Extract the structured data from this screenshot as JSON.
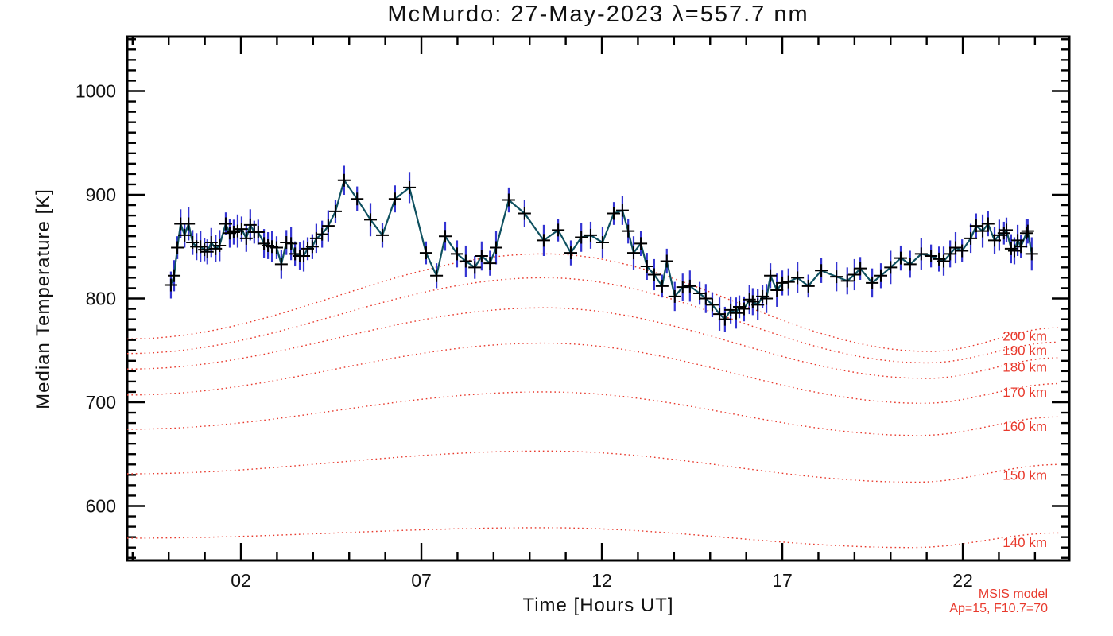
{
  "title": "McMurdo: 27-May-2023 λ=557.7 nm",
  "chart_data": {
    "type": "line",
    "title": "McMurdo: 27-May-2023 λ=557.7 nm",
    "xlabel": "Time [Hours UT]",
    "ylabel": "Median Temperature [K]",
    "xlim": [
      -1.15,
      24.95
    ],
    "ylim": [
      547.5,
      1052.5
    ],
    "grid": false,
    "x_major_ticks": [
      2,
      7,
      12,
      17,
      22
    ],
    "x_major_labels": [
      "02",
      "07",
      "12",
      "17",
      "22"
    ],
    "x_minor_step": 1,
    "y_major_ticks": [
      600,
      700,
      800,
      900,
      1000
    ],
    "y_minor_step": 10,
    "colors": {
      "data_line": "#0f5160",
      "marker": "#000000",
      "error_bar": "#3434d2",
      "model": "#e8392c",
      "axis": "#000000",
      "text": "#111111"
    },
    "series": [
      {
        "name": "measured median temperature with error bars",
        "marker": "plus",
        "points_format": [
          "hour_ut",
          "temperature_k",
          "error_half_k"
        ],
        "points": [
          [
            0.06,
            813,
            13
          ],
          [
            0.15,
            822,
            15
          ],
          [
            0.24,
            849,
            11
          ],
          [
            0.33,
            872,
            14
          ],
          [
            0.44,
            861,
            12
          ],
          [
            0.55,
            872,
            16
          ],
          [
            0.66,
            854,
            12
          ],
          [
            0.77,
            850,
            13
          ],
          [
            0.88,
            850,
            15
          ],
          [
            0.99,
            847,
            11
          ],
          [
            1.07,
            845,
            12
          ],
          [
            1.18,
            854,
            14
          ],
          [
            1.3,
            848,
            13
          ],
          [
            1.41,
            851,
            15
          ],
          [
            1.58,
            872,
            11
          ],
          [
            1.69,
            863,
            14
          ],
          [
            1.8,
            864,
            12
          ],
          [
            1.91,
            865,
            16
          ],
          [
            2.02,
            867,
            12
          ],
          [
            2.15,
            858,
            13
          ],
          [
            2.26,
            871,
            15
          ],
          [
            2.37,
            864,
            11
          ],
          [
            2.48,
            864,
            12
          ],
          [
            2.64,
            853,
            14
          ],
          [
            2.75,
            851,
            13
          ],
          [
            2.86,
            850,
            15
          ],
          [
            2.99,
            849,
            11
          ],
          [
            3.12,
            833,
            14
          ],
          [
            3.26,
            854,
            12
          ],
          [
            3.39,
            853,
            16
          ],
          [
            3.5,
            843,
            12
          ],
          [
            3.63,
            841,
            13
          ],
          [
            3.74,
            841,
            15
          ],
          [
            3.85,
            848,
            11
          ],
          [
            3.98,
            850,
            12
          ],
          [
            4.09,
            858,
            14
          ],
          [
            4.25,
            862,
            13
          ],
          [
            4.42,
            870,
            15
          ],
          [
            4.62,
            884,
            11
          ],
          [
            4.86,
            914,
            14
          ],
          [
            5.22,
            896,
            12
          ],
          [
            5.59,
            876,
            16
          ],
          [
            5.92,
            861,
            12
          ],
          [
            6.27,
            896,
            13
          ],
          [
            6.67,
            907,
            15
          ],
          [
            7.13,
            844,
            11
          ],
          [
            7.42,
            822,
            12
          ],
          [
            7.66,
            860,
            14
          ],
          [
            7.99,
            843,
            13
          ],
          [
            8.23,
            836,
            15
          ],
          [
            8.48,
            830,
            11
          ],
          [
            8.67,
            841,
            14
          ],
          [
            8.9,
            834,
            12
          ],
          [
            9.07,
            849,
            16
          ],
          [
            9.42,
            895,
            12
          ],
          [
            9.86,
            882,
            13
          ],
          [
            10.39,
            856,
            15
          ],
          [
            10.79,
            866,
            11
          ],
          [
            11.14,
            844,
            12
          ],
          [
            11.43,
            859,
            14
          ],
          [
            11.69,
            861,
            13
          ],
          [
            12.02,
            854,
            15
          ],
          [
            12.33,
            882,
            11
          ],
          [
            12.57,
            885,
            14
          ],
          [
            12.73,
            865,
            12
          ],
          [
            12.88,
            844,
            16
          ],
          [
            13.08,
            853,
            12
          ],
          [
            13.25,
            831,
            13
          ],
          [
            13.45,
            823,
            15
          ],
          [
            13.67,
            812,
            11
          ],
          [
            13.8,
            836,
            12
          ],
          [
            14.02,
            802,
            14
          ],
          [
            14.24,
            811,
            13
          ],
          [
            14.44,
            812,
            15
          ],
          [
            14.71,
            805,
            11
          ],
          [
            14.88,
            800,
            14
          ],
          [
            15.06,
            794,
            12
          ],
          [
            15.26,
            785,
            16
          ],
          [
            15.41,
            780,
            12
          ],
          [
            15.57,
            789,
            13
          ],
          [
            15.72,
            786,
            15
          ],
          [
            15.81,
            792,
            11
          ],
          [
            15.94,
            790,
            12
          ],
          [
            16.09,
            799,
            14
          ],
          [
            16.18,
            797,
            13
          ],
          [
            16.32,
            794,
            15
          ],
          [
            16.45,
            802,
            11
          ],
          [
            16.56,
            800,
            14
          ],
          [
            16.67,
            822,
            12
          ],
          [
            16.85,
            808,
            16
          ],
          [
            17.0,
            815,
            12
          ],
          [
            17.17,
            816,
            13
          ],
          [
            17.42,
            820,
            15
          ],
          [
            17.72,
            812,
            11
          ],
          [
            18.08,
            827,
            12
          ],
          [
            18.5,
            821,
            14
          ],
          [
            18.8,
            817,
            13
          ],
          [
            19.0,
            823,
            15
          ],
          [
            19.16,
            829,
            11
          ],
          [
            19.49,
            815,
            14
          ],
          [
            19.73,
            822,
            12
          ],
          [
            20.0,
            830,
            16
          ],
          [
            20.28,
            839,
            12
          ],
          [
            20.54,
            833,
            13
          ],
          [
            20.85,
            843,
            15
          ],
          [
            21.12,
            841,
            11
          ],
          [
            21.34,
            838,
            12
          ],
          [
            21.47,
            836,
            14
          ],
          [
            21.65,
            843,
            13
          ],
          [
            21.8,
            849,
            15
          ],
          [
            21.98,
            846,
            11
          ],
          [
            22.22,
            858,
            14
          ],
          [
            22.37,
            870,
            12
          ],
          [
            22.55,
            865,
            16
          ],
          [
            22.7,
            872,
            12
          ],
          [
            22.88,
            856,
            13
          ],
          [
            23.01,
            861,
            15
          ],
          [
            23.14,
            863,
            11
          ],
          [
            23.21,
            866,
            12
          ],
          [
            23.34,
            848,
            14
          ],
          [
            23.43,
            846,
            13
          ],
          [
            23.52,
            856,
            15
          ],
          [
            23.61,
            850,
            11
          ],
          [
            23.76,
            863,
            14
          ],
          [
            23.8,
            865,
            12
          ],
          [
            23.91,
            843,
            16
          ]
        ]
      }
    ],
    "model_curves": [
      {
        "label": "200 km",
        "label_t": 764,
        "anchors": [
          [
            -1.15,
            761
          ],
          [
            10.4,
            843
          ],
          [
            21.1,
            749
          ],
          [
            24.7,
            772
          ]
        ]
      },
      {
        "label": "190 km",
        "label_t": 750,
        "anchors": [
          [
            -1.15,
            747
          ],
          [
            10.4,
            820
          ],
          [
            21.0,
            738
          ],
          [
            24.7,
            758
          ]
        ]
      },
      {
        "label": "180 km",
        "label_t": 734,
        "anchors": [
          [
            -1.15,
            732
          ],
          [
            10.4,
            791
          ],
          [
            21.0,
            723
          ],
          [
            24.7,
            743
          ]
        ]
      },
      {
        "label": "170 km",
        "label_t": 710,
        "anchors": [
          [
            -1.15,
            707
          ],
          [
            10.4,
            757
          ],
          [
            20.9,
            699
          ],
          [
            24.7,
            718
          ]
        ]
      },
      {
        "label": "160 km",
        "label_t": 677,
        "anchors": [
          [
            -1.15,
            674
          ],
          [
            10.4,
            710
          ],
          [
            20.8,
            668
          ],
          [
            24.7,
            686
          ]
        ]
      },
      {
        "label": "150 km",
        "label_t": 630,
        "anchors": [
          [
            -1.15,
            631
          ],
          [
            10.4,
            653
          ],
          [
            20.7,
            623
          ],
          [
            24.7,
            640
          ]
        ]
      },
      {
        "label": "140 km",
        "label_t": 565,
        "anchors": [
          [
            -1.15,
            569
          ],
          [
            10.4,
            579
          ],
          [
            20.6,
            560
          ],
          [
            24.7,
            574
          ]
        ]
      }
    ],
    "legend_position": "none",
    "annotation": {
      "line1": "MSIS model",
      "line2": "Ap=15, F10.7=70"
    }
  }
}
